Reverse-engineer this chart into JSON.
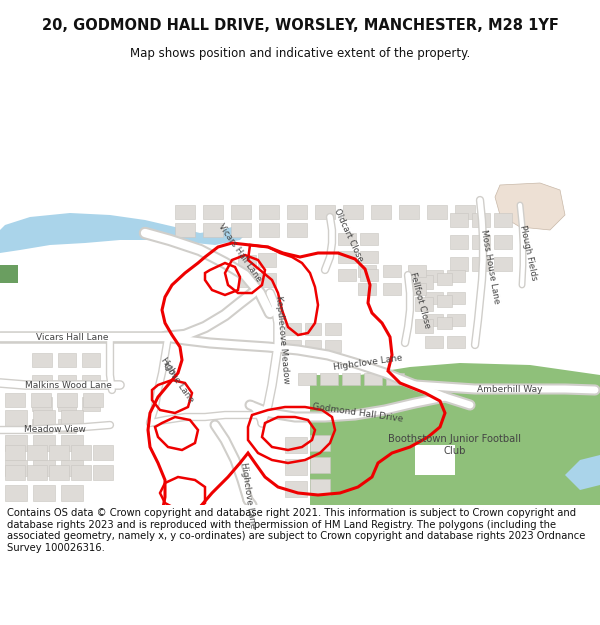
{
  "title": "20, GODMOND HALL DRIVE, WORSLEY, MANCHESTER, M28 1YF",
  "subtitle": "Map shows position and indicative extent of the property.",
  "footer": "Contains OS data © Crown copyright and database right 2021. This information is subject to Crown copyright and database rights 2023 and is reproduced with the permission of HM Land Registry. The polygons (including the associated geometry, namely x, y co-ordinates) are subject to Crown copyright and database rights 2023 Ordnance Survey 100026316.",
  "bg_color": "#f7f5f2",
  "road_fill": "#ffffff",
  "road_edge": "#d0ceca",
  "building_fill": "#dedbd7",
  "building_edge": "#c8c5c0",
  "green_fill": "#8fc07a",
  "water_fill": "#aad4ea",
  "peach_fill": "#ede0d4",
  "red_line": "#ee0000",
  "label_color": "#444444",
  "title_fontsize": 10.5,
  "subtitle_fontsize": 8.5,
  "footer_fontsize": 7.2,
  "label_fs": 6.2
}
